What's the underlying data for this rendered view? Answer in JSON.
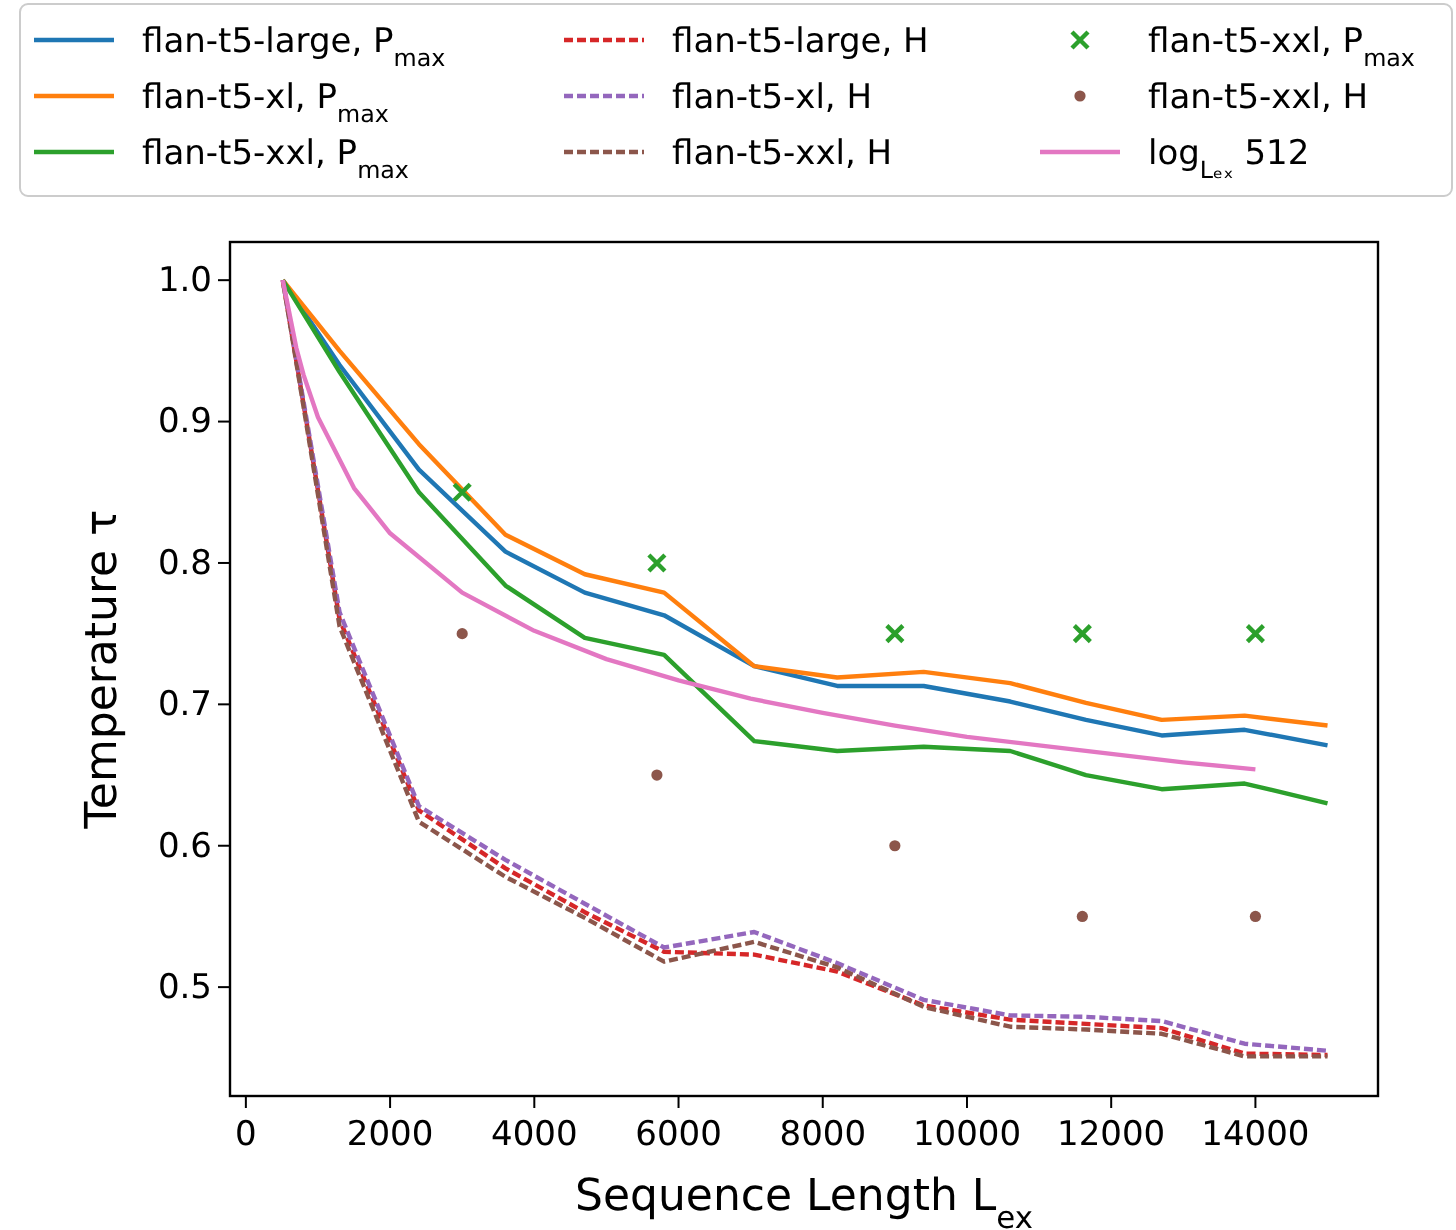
{
  "chart_data": {
    "type": "line",
    "xlabel": "Sequence Length L$_{ex}$",
    "ylabel": "Temperature τ",
    "xlim": [
      -220,
      15700
    ],
    "ylim": [
      0.423,
      1.027
    ],
    "xticks": [
      0,
      2000,
      4000,
      6000,
      8000,
      10000,
      12000,
      14000
    ],
    "yticks": [
      0.5,
      0.6,
      0.7,
      0.8,
      0.9,
      {
        "value": 1,
        "label": "1.0"
      }
    ],
    "grid": false,
    "legend": "top",
    "series": [
      {
        "name": "flan-t5-large, P$_{max}$",
        "color": "#1f77b4",
        "line_style": "solid",
        "x": [
          512,
          1300,
          2400,
          3600,
          4700,
          5800,
          7050,
          8200,
          9400,
          10600,
          11650,
          12700,
          13850,
          15000
        ],
        "values": [
          1.0,
          0.94,
          0.866,
          0.808,
          0.779,
          0.763,
          0.727,
          0.713,
          0.713,
          0.702,
          0.689,
          0.678,
          0.682,
          0.671
        ]
      },
      {
        "name": "flan-t5-xl, P$_{max}$",
        "color": "#ff7f0e",
        "line_style": "solid",
        "x": [
          512,
          1300,
          2400,
          3600,
          4700,
          5800,
          7050,
          8200,
          9400,
          10600,
          11650,
          12700,
          13850,
          15000
        ],
        "values": [
          1.0,
          0.95,
          0.884,
          0.82,
          0.792,
          0.779,
          0.727,
          0.719,
          0.723,
          0.715,
          0.701,
          0.689,
          0.692,
          0.685
        ]
      },
      {
        "name": "flan-t5-xxl, P$_{max}$",
        "color": "#2ca02c",
        "line_style": "solid",
        "x": [
          512,
          1300,
          2400,
          3600,
          4700,
          5800,
          7050,
          8200,
          9400,
          10600,
          11650,
          12700,
          13850,
          15000
        ],
        "values": [
          1.0,
          0.935,
          0.85,
          0.784,
          0.747,
          0.735,
          0.674,
          0.667,
          0.67,
          0.667,
          0.65,
          0.64,
          0.644,
          0.63
        ]
      },
      {
        "name": "flan-t5-large, H",
        "color": "#d62728",
        "line_style": "dashed",
        "x": [
          512,
          1300,
          2400,
          3600,
          4700,
          5800,
          7050,
          8200,
          9400,
          10600,
          11650,
          12700,
          13850,
          15000
        ],
        "values": [
          1.0,
          0.76,
          0.625,
          0.584,
          0.553,
          0.525,
          0.523,
          0.511,
          0.487,
          0.477,
          0.474,
          0.471,
          0.453,
          0.452
        ]
      },
      {
        "name": "flan-t5-xl, H",
        "color": "#9467bd",
        "line_style": "dashed",
        "x": [
          512,
          1300,
          2400,
          3600,
          4700,
          5800,
          7050,
          8200,
          9400,
          10600,
          11650,
          12700,
          13850,
          15000
        ],
        "values": [
          1.0,
          0.765,
          0.628,
          0.59,
          0.559,
          0.528,
          0.539,
          0.517,
          0.491,
          0.48,
          0.479,
          0.476,
          0.46,
          0.455
        ]
      },
      {
        "name": "flan-t5-xxl, H",
        "color": "#8c564b",
        "line_style": "dashed",
        "x": [
          512,
          1300,
          2400,
          3600,
          4700,
          5800,
          7050,
          8200,
          9400,
          10600,
          11650,
          12700,
          13850,
          15000
        ],
        "values": [
          1.0,
          0.755,
          0.617,
          0.578,
          0.549,
          0.518,
          0.532,
          0.514,
          0.486,
          0.472,
          0.47,
          0.467,
          0.451,
          0.451
        ]
      },
      {
        "name": "flan-t5-xxl, P$_{max}$",
        "type": "scatter",
        "marker": "cross",
        "color": "#2ca02c",
        "x": [
          3000,
          5700,
          9000,
          11600,
          14000
        ],
        "values": [
          0.85,
          0.8,
          0.75,
          0.75,
          0.75
        ]
      },
      {
        "name": "flan-t5-xxl, H",
        "type": "scatter",
        "marker": "circle",
        "color": "#8c564b",
        "x": [
          3000,
          5700,
          9000,
          11600,
          14000
        ],
        "values": [
          0.75,
          0.65,
          0.6,
          0.55,
          0.55
        ]
      },
      {
        "name": "log$_{Lₑₓ}$ 512",
        "color": "#e377c2",
        "line_style": "solid",
        "x": [
          512,
          700,
          800,
          1000,
          1500,
          2000,
          3000,
          4000,
          5000,
          6000,
          7000,
          8000,
          9000,
          10000,
          11000,
          12000,
          13000,
          14000
        ],
        "values": [
          1.0,
          0.952,
          0.933,
          0.903,
          0.853,
          0.821,
          0.779,
          0.752,
          0.732,
          0.717,
          0.704,
          0.694,
          0.685,
          0.677,
          0.671,
          0.665,
          0.659,
          0.654
        ]
      }
    ]
  }
}
